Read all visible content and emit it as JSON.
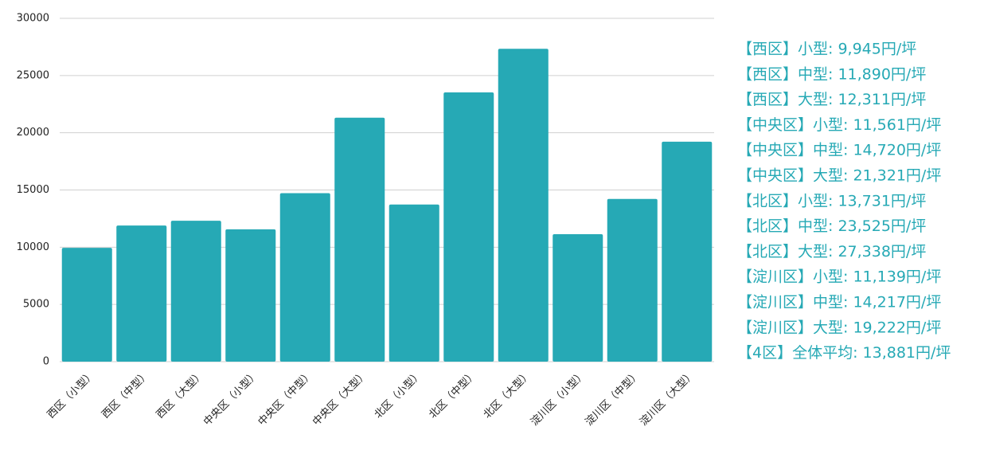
{
  "chart_data": {
    "type": "bar",
    "categories": [
      "西区（小型）",
      "西区（中型）",
      "西区（大型）",
      "中央区（小型）",
      "中央区（中型）",
      "中央区（大型）",
      "北区（小型）",
      "北区（中型）",
      "北区（大型）",
      "淀川区（小型）",
      "淀川区（中型）",
      "淀川区（大型）"
    ],
    "values": [
      9945,
      11890,
      12311,
      11561,
      14720,
      21321,
      13731,
      23525,
      27338,
      11139,
      14217,
      19222
    ],
    "color": "#26a9b5",
    "ylim": [
      0,
      30000
    ],
    "yticks": [
      0,
      5000,
      10000,
      15000,
      20000,
      25000,
      30000
    ],
    "grid": true,
    "annotations": [
      "【西区】小型: 9,945円/坪",
      "【西区】中型: 11,890円/坪",
      "【西区】大型: 12,311円/坪",
      "【中央区】小型: 11,561円/坪",
      "【中央区】中型: 14,720円/坪",
      "【中央区】大型: 21,321円/坪",
      "【北区】小型: 13,731円/坪",
      "【北区】中型: 23,525円/坪",
      "【北区】大型: 27,338円/坪",
      "【淀川区】小型: 11,139円/坪",
      "【淀川区】中型: 14,217円/坪",
      "【淀川区】大型: 19,222円/坪",
      "【4区】全体平均: 13,881円/坪"
    ]
  }
}
